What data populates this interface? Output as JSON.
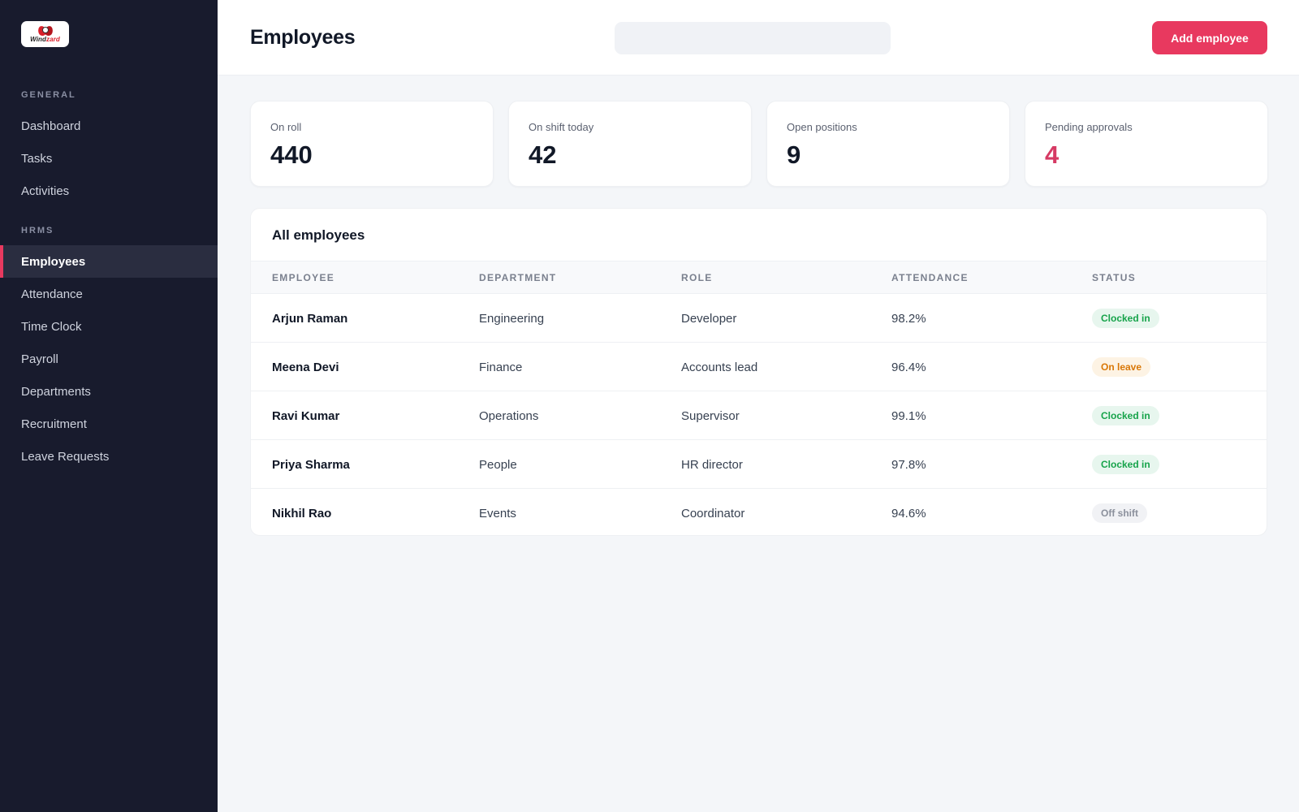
{
  "sidebar": {
    "logo": {
      "text_a": "Wind",
      "text_b": "zard"
    },
    "sections": [
      {
        "title": "GENERAL",
        "items": [
          {
            "label": "Dashboard",
            "active": false
          },
          {
            "label": "Tasks",
            "active": false
          },
          {
            "label": "Activities",
            "active": false
          }
        ]
      },
      {
        "title": "HRMS",
        "items": [
          {
            "label": "Employees",
            "active": true
          },
          {
            "label": "Attendance",
            "active": false
          },
          {
            "label": "Time Clock",
            "active": false
          },
          {
            "label": "Payroll",
            "active": false
          },
          {
            "label": "Departments",
            "active": false
          },
          {
            "label": "Recruitment",
            "active": false
          },
          {
            "label": "Leave Requests",
            "active": false
          }
        ]
      }
    ]
  },
  "header": {
    "title": "Employees",
    "search": {
      "value": "",
      "placeholder": ""
    },
    "add_button": "Add employee"
  },
  "stats": [
    {
      "label": "On roll",
      "value": "440"
    },
    {
      "label": "On shift today",
      "value": "42"
    },
    {
      "label": "Open positions",
      "value": "9"
    },
    {
      "label": "Pending approvals",
      "value": "4"
    }
  ],
  "table": {
    "title": "All employees",
    "columns": [
      "EMPLOYEE",
      "DEPARTMENT",
      "ROLE",
      "ATTENDANCE",
      "STATUS"
    ],
    "rows": [
      {
        "employee": "Arjun Raman",
        "department": "Engineering",
        "role": "Developer",
        "attendance": "98.2%",
        "status": "Clocked in",
        "status_kind": "green"
      },
      {
        "employee": "Meena Devi",
        "department": "Finance",
        "role": "Accounts lead",
        "attendance": "96.4%",
        "status": "On leave",
        "status_kind": "amber"
      },
      {
        "employee": "Ravi Kumar",
        "department": "Operations",
        "role": "Supervisor",
        "attendance": "99.1%",
        "status": "Clocked in",
        "status_kind": "green"
      },
      {
        "employee": "Priya Sharma",
        "department": "People",
        "role": "HR director",
        "attendance": "97.8%",
        "status": "Clocked in",
        "status_kind": "green"
      },
      {
        "employee": "Nikhil Rao",
        "department": "Events",
        "role": "Coordinator",
        "attendance": "94.6%",
        "status": "Off shift",
        "status_kind": "gray"
      }
    ]
  },
  "colors": {
    "accent": "#e8395f",
    "sidebar_bg": "#181b2d",
    "page_bg": "#f4f6f9"
  }
}
